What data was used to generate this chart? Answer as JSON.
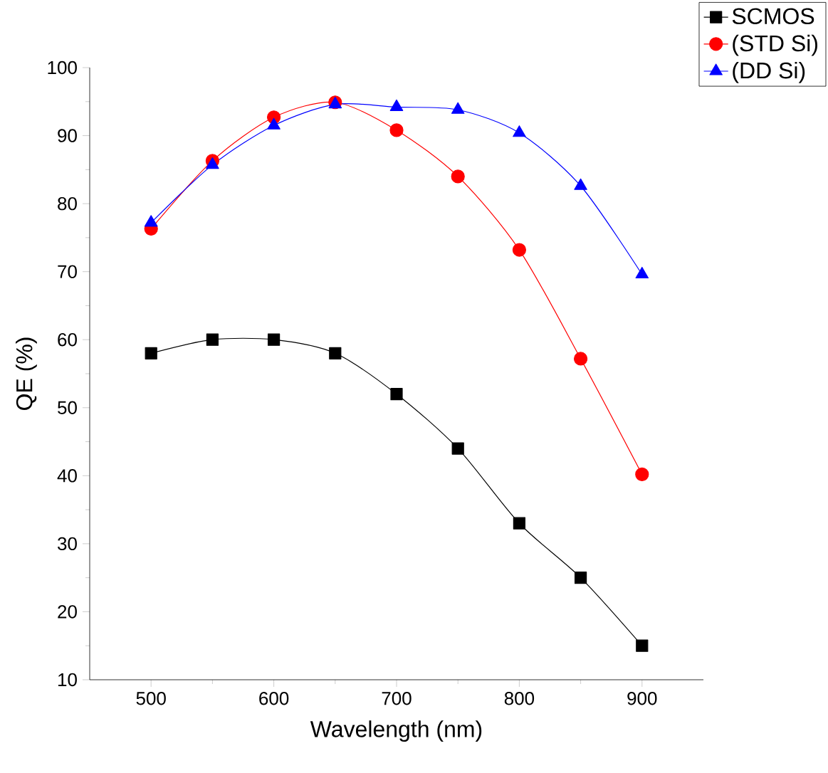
{
  "chart_data": {
    "type": "line",
    "xlabel": "Wavelength (nm)",
    "ylabel": "QE (%)",
    "x": [
      500,
      550,
      600,
      650,
      700,
      750,
      800,
      850,
      900
    ],
    "series": [
      {
        "name": "SCMOS",
        "color": "#000000",
        "marker": "square",
        "values": [
          58,
          60,
          60,
          58,
          52,
          44,
          33,
          25,
          15
        ]
      },
      {
        "name": "(STD Si)",
        "color": "#ff0000",
        "marker": "circle",
        "values": [
          76.3,
          86.3,
          92.7,
          94.9,
          90.8,
          84,
          73.2,
          57.2,
          40.2
        ]
      },
      {
        "name": "(DD Si)",
        "color": "#0000ff",
        "marker": "triangle",
        "values": [
          77.2,
          85.7,
          91.5,
          94.6,
          94.2,
          93.8,
          90.4,
          82.6,
          69.6
        ]
      }
    ],
    "xlim": [
      450,
      950
    ],
    "ylim": [
      10,
      100
    ],
    "xticks": [
      500,
      600,
      700,
      800,
      900
    ],
    "yticks": [
      10,
      20,
      30,
      40,
      50,
      60,
      70,
      80,
      90,
      100
    ],
    "line_style": "solid",
    "legend": "top right",
    "grid": false
  }
}
